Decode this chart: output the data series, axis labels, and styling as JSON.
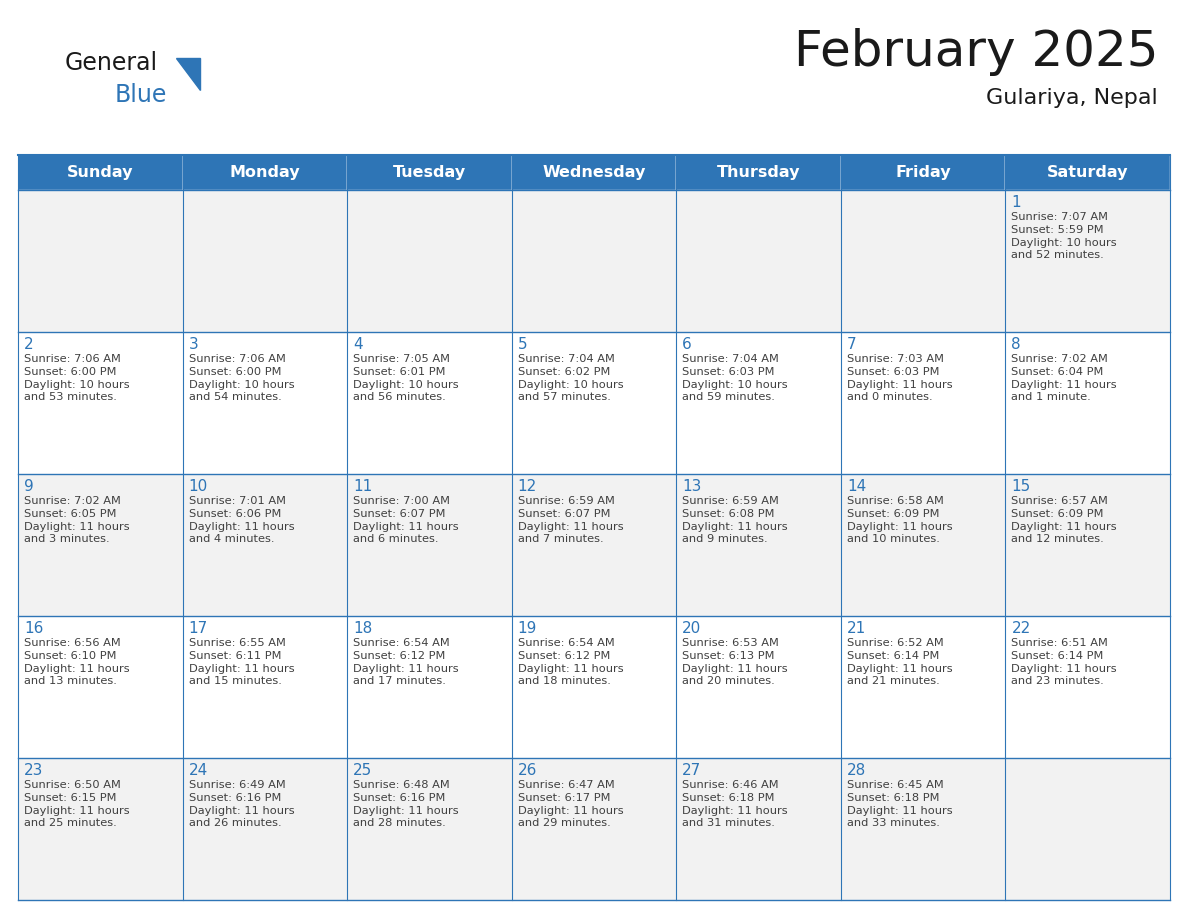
{
  "title": "February 2025",
  "subtitle": "Gulariya, Nepal",
  "header_color": "#2E75B6",
  "header_text_color": "#FFFFFF",
  "row_bg_even": "#F2F2F2",
  "row_bg_odd": "#FFFFFF",
  "border_color": "#2E75B6",
  "day_number_color": "#2E75B6",
  "cell_text_color": "#404040",
  "days_of_week": [
    "Sunday",
    "Monday",
    "Tuesday",
    "Wednesday",
    "Thursday",
    "Friday",
    "Saturday"
  ],
  "weeks": [
    [
      {
        "day": null,
        "info": null
      },
      {
        "day": null,
        "info": null
      },
      {
        "day": null,
        "info": null
      },
      {
        "day": null,
        "info": null
      },
      {
        "day": null,
        "info": null
      },
      {
        "day": null,
        "info": null
      },
      {
        "day": 1,
        "info": "Sunrise: 7:07 AM\nSunset: 5:59 PM\nDaylight: 10 hours\nand 52 minutes."
      }
    ],
    [
      {
        "day": 2,
        "info": "Sunrise: 7:06 AM\nSunset: 6:00 PM\nDaylight: 10 hours\nand 53 minutes."
      },
      {
        "day": 3,
        "info": "Sunrise: 7:06 AM\nSunset: 6:00 PM\nDaylight: 10 hours\nand 54 minutes."
      },
      {
        "day": 4,
        "info": "Sunrise: 7:05 AM\nSunset: 6:01 PM\nDaylight: 10 hours\nand 56 minutes."
      },
      {
        "day": 5,
        "info": "Sunrise: 7:04 AM\nSunset: 6:02 PM\nDaylight: 10 hours\nand 57 minutes."
      },
      {
        "day": 6,
        "info": "Sunrise: 7:04 AM\nSunset: 6:03 PM\nDaylight: 10 hours\nand 59 minutes."
      },
      {
        "day": 7,
        "info": "Sunrise: 7:03 AM\nSunset: 6:03 PM\nDaylight: 11 hours\nand 0 minutes."
      },
      {
        "day": 8,
        "info": "Sunrise: 7:02 AM\nSunset: 6:04 PM\nDaylight: 11 hours\nand 1 minute."
      }
    ],
    [
      {
        "day": 9,
        "info": "Sunrise: 7:02 AM\nSunset: 6:05 PM\nDaylight: 11 hours\nand 3 minutes."
      },
      {
        "day": 10,
        "info": "Sunrise: 7:01 AM\nSunset: 6:06 PM\nDaylight: 11 hours\nand 4 minutes."
      },
      {
        "day": 11,
        "info": "Sunrise: 7:00 AM\nSunset: 6:07 PM\nDaylight: 11 hours\nand 6 minutes."
      },
      {
        "day": 12,
        "info": "Sunrise: 6:59 AM\nSunset: 6:07 PM\nDaylight: 11 hours\nand 7 minutes."
      },
      {
        "day": 13,
        "info": "Sunrise: 6:59 AM\nSunset: 6:08 PM\nDaylight: 11 hours\nand 9 minutes."
      },
      {
        "day": 14,
        "info": "Sunrise: 6:58 AM\nSunset: 6:09 PM\nDaylight: 11 hours\nand 10 minutes."
      },
      {
        "day": 15,
        "info": "Sunrise: 6:57 AM\nSunset: 6:09 PM\nDaylight: 11 hours\nand 12 minutes."
      }
    ],
    [
      {
        "day": 16,
        "info": "Sunrise: 6:56 AM\nSunset: 6:10 PM\nDaylight: 11 hours\nand 13 minutes."
      },
      {
        "day": 17,
        "info": "Sunrise: 6:55 AM\nSunset: 6:11 PM\nDaylight: 11 hours\nand 15 minutes."
      },
      {
        "day": 18,
        "info": "Sunrise: 6:54 AM\nSunset: 6:12 PM\nDaylight: 11 hours\nand 17 minutes."
      },
      {
        "day": 19,
        "info": "Sunrise: 6:54 AM\nSunset: 6:12 PM\nDaylight: 11 hours\nand 18 minutes."
      },
      {
        "day": 20,
        "info": "Sunrise: 6:53 AM\nSunset: 6:13 PM\nDaylight: 11 hours\nand 20 minutes."
      },
      {
        "day": 21,
        "info": "Sunrise: 6:52 AM\nSunset: 6:14 PM\nDaylight: 11 hours\nand 21 minutes."
      },
      {
        "day": 22,
        "info": "Sunrise: 6:51 AM\nSunset: 6:14 PM\nDaylight: 11 hours\nand 23 minutes."
      }
    ],
    [
      {
        "day": 23,
        "info": "Sunrise: 6:50 AM\nSunset: 6:15 PM\nDaylight: 11 hours\nand 25 minutes."
      },
      {
        "day": 24,
        "info": "Sunrise: 6:49 AM\nSunset: 6:16 PM\nDaylight: 11 hours\nand 26 minutes."
      },
      {
        "day": 25,
        "info": "Sunrise: 6:48 AM\nSunset: 6:16 PM\nDaylight: 11 hours\nand 28 minutes."
      },
      {
        "day": 26,
        "info": "Sunrise: 6:47 AM\nSunset: 6:17 PM\nDaylight: 11 hours\nand 29 minutes."
      },
      {
        "day": 27,
        "info": "Sunrise: 6:46 AM\nSunset: 6:18 PM\nDaylight: 11 hours\nand 31 minutes."
      },
      {
        "day": 28,
        "info": "Sunrise: 6:45 AM\nSunset: 6:18 PM\nDaylight: 11 hours\nand 33 minutes."
      },
      {
        "day": null,
        "info": null
      }
    ]
  ],
  "logo_text_general": "General",
  "logo_text_blue": "Blue",
  "logo_triangle_color": "#2E75B6",
  "fig_width": 11.88,
  "fig_height": 9.18,
  "dpi": 100
}
